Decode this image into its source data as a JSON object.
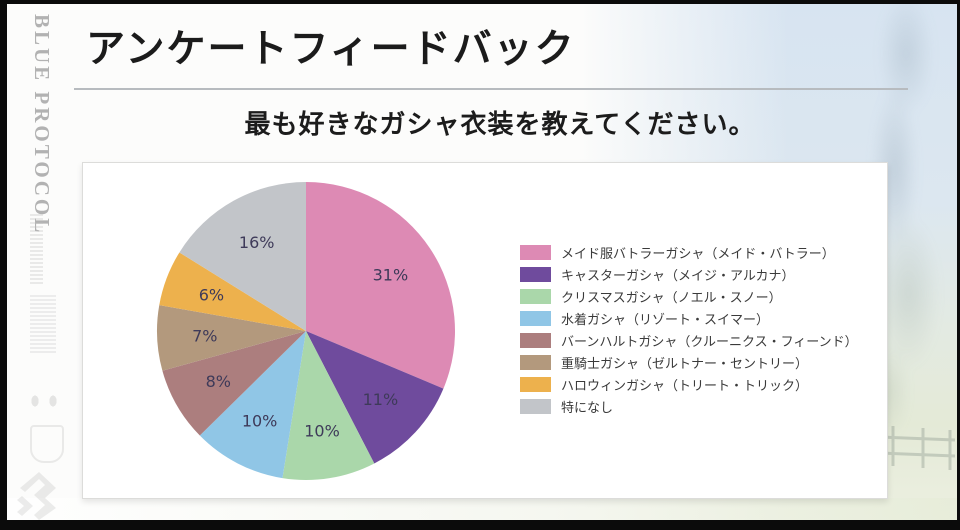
{
  "page": {
    "title": "アンケートフィードバック",
    "subtitle": "最も好きなガシャ衣装を教えてください。",
    "side_logo": "BLUE PROTOCOL"
  },
  "chart_data": {
    "type": "pie",
    "question": "最も好きなガシャ衣装を教えてください。",
    "start_angle": "top",
    "direction": "clockwise",
    "legend_position": "right",
    "value_label_suffix": "%",
    "slices": [
      {
        "label": "メイド服バトラーガシャ（メイド・バトラー）",
        "value_pct": 31,
        "color": "#dd8ab4"
      },
      {
        "label": "キャスターガシャ（メイジ・アルカナ）",
        "value_pct": 11,
        "color": "#6f4b9d"
      },
      {
        "label": "クリスマスガシャ（ノエル・スノー）",
        "value_pct": 10,
        "color": "#aad7aa"
      },
      {
        "label": "水着ガシャ（リゾート・スイマー）",
        "value_pct": 10,
        "color": "#90c6e6"
      },
      {
        "label": "バーンハルトガシャ（クルーニクス・フィーンド）",
        "value_pct": 8,
        "color": "#ac7e7e"
      },
      {
        "label": "重騎士ガシャ（ゼルトナー・セントリー）",
        "value_pct": 7,
        "color": "#b3997d"
      },
      {
        "label": "ハロウィンガシャ（トリート・トリック）",
        "value_pct": 6,
        "color": "#edb14d"
      },
      {
        "label": "特になし",
        "value_pct": 16,
        "color": "#c2c5c9"
      }
    ],
    "label_text_color": "#3e3a59"
  }
}
